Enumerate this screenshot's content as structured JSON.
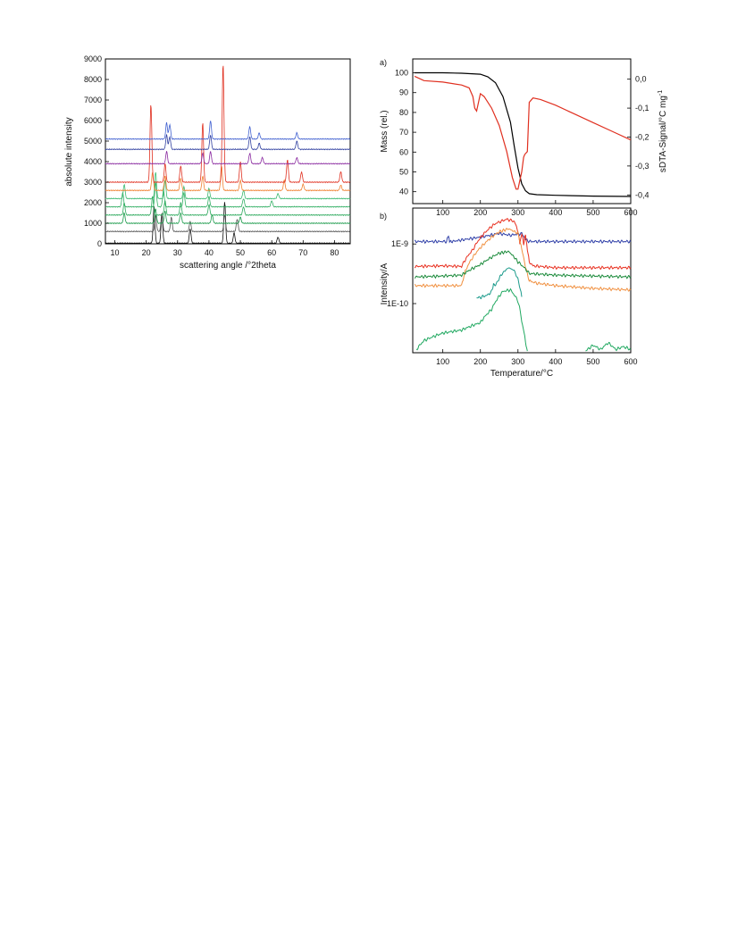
{
  "chart_data": [
    {
      "type": "line",
      "xlabel": "scattering angle /°2theta",
      "ylabel": "absolute intensity",
      "xlim": [
        7,
        85
      ],
      "ylim": [
        0,
        9000
      ],
      "x_ticks": [
        "10",
        "20",
        "30",
        "40",
        "50",
        "60",
        "70",
        "80"
      ],
      "y_ticks": [
        "0",
        "1000",
        "2000",
        "3000",
        "4000",
        "5000",
        "6000",
        "7000",
        "8000",
        "9000"
      ],
      "grid": false,
      "trace_colors": [
        "#111111",
        "#555555",
        "#1a9a4a",
        "#2aa85a",
        "#35b066",
        "#3fba72",
        "#f08030",
        "#e03020",
        "#8a2aa0",
        "#3040a0",
        "#4060d0"
      ],
      "trace_baselines": [
        30,
        600,
        1000,
        1400,
        1800,
        2200,
        2600,
        3000,
        3900,
        4600,
        5100
      ],
      "trace_peaks": [
        [
          [
            22.5,
            1800
          ],
          [
            25,
            1400
          ],
          [
            34,
            700
          ],
          [
            45,
            2000
          ],
          [
            48,
            500
          ],
          [
            62,
            300
          ]
        ],
        [
          [
            23,
            800
          ],
          [
            25,
            900
          ],
          [
            28,
            700
          ],
          [
            34,
            500
          ],
          [
            45,
            800
          ],
          [
            49,
            600
          ]
        ],
        [
          [
            13,
            500
          ],
          [
            23,
            700
          ],
          [
            26,
            600
          ],
          [
            31,
            500
          ],
          [
            41,
            400
          ],
          [
            50,
            300
          ]
        ],
        [
          [
            13,
            600
          ],
          [
            22,
            900
          ],
          [
            26,
            700
          ],
          [
            31,
            600
          ],
          [
            40,
            500
          ],
          [
            51,
            400
          ]
        ],
        [
          [
            12.5,
            700
          ],
          [
            23,
            1200
          ],
          [
            25.5,
            800
          ],
          [
            32,
            700
          ],
          [
            40,
            500
          ],
          [
            51,
            400
          ],
          [
            60,
            300
          ]
        ],
        [
          [
            13,
            700
          ],
          [
            23,
            1300
          ],
          [
            26,
            900
          ],
          [
            32,
            600
          ],
          [
            40,
            500
          ],
          [
            51,
            400
          ],
          [
            62,
            250
          ]
        ],
        [
          [
            22,
            900
          ],
          [
            26,
            700
          ],
          [
            31,
            600
          ],
          [
            38,
            700
          ],
          [
            44,
            1200
          ],
          [
            50,
            500
          ],
          [
            64,
            500
          ],
          [
            70,
            300
          ],
          [
            82,
            250
          ]
        ],
        [
          [
            21.5,
            3800
          ],
          [
            26,
            900
          ],
          [
            31,
            800
          ],
          [
            38,
            2900
          ],
          [
            44.5,
            5800
          ],
          [
            50,
            1000
          ],
          [
            65,
            1100
          ],
          [
            69.5,
            500
          ],
          [
            82,
            500
          ]
        ],
        [
          [
            26.5,
            600
          ],
          [
            38,
            500
          ],
          [
            40.5,
            600
          ],
          [
            53,
            500
          ],
          [
            57,
            300
          ],
          [
            68,
            300
          ]
        ],
        [
          [
            26.5,
            700
          ],
          [
            27.5,
            600
          ],
          [
            40.5,
            700
          ],
          [
            53,
            600
          ],
          [
            56,
            300
          ],
          [
            68,
            400
          ]
        ],
        [
          [
            26.5,
            800
          ],
          [
            27.5,
            700
          ],
          [
            40.5,
            900
          ],
          [
            53,
            600
          ],
          [
            56,
            300
          ],
          [
            68,
            300
          ]
        ]
      ]
    },
    {
      "type": "line",
      "panel_label": "a)",
      "xlabel": "",
      "ylabel": "Mass (rel.)",
      "y2label": "sDTA-Signal/°C mg",
      "y2label_sup": "-1",
      "xlim": [
        20,
        600
      ],
      "ylim": [
        34,
        107
      ],
      "y2lim": [
        -0.43,
        0.07
      ],
      "x_ticks": [
        "100",
        "200",
        "300",
        "400",
        "500",
        "600"
      ],
      "y_ticks": [
        "40",
        "50",
        "60",
        "70",
        "80",
        "90",
        "100"
      ],
      "y2_ticks": [
        "0,0",
        "-0,1",
        "-0,2",
        "-0,3",
        "-0,4"
      ],
      "series": [
        {
          "color": "#000000",
          "axis": "left",
          "x": [
            25,
            100,
            150,
            200,
            220,
            240,
            260,
            280,
            290,
            300,
            310,
            320,
            330,
            350,
            400,
            500,
            600
          ],
          "y": [
            100,
            100,
            99.8,
            99.3,
            98.0,
            95.0,
            88.0,
            75.0,
            63.0,
            52.0,
            44.0,
            40.5,
            39.0,
            38.5,
            38.2,
            37.8,
            37.6
          ]
        },
        {
          "color": "#e03020",
          "axis": "right",
          "x": [
            25,
            50,
            100,
            150,
            170,
            180,
            185,
            190,
            195,
            200,
            210,
            230,
            250,
            270,
            285,
            295,
            300,
            310,
            315,
            318,
            325,
            330,
            340,
            360,
            400,
            450,
            500,
            550,
            600
          ],
          "y": [
            0.01,
            -0.005,
            -0.01,
            -0.02,
            -0.03,
            -0.06,
            -0.1,
            -0.11,
            -0.08,
            -0.05,
            -0.06,
            -0.1,
            -0.16,
            -0.25,
            -0.34,
            -0.38,
            -0.38,
            -0.32,
            -0.27,
            -0.26,
            -0.25,
            -0.08,
            -0.065,
            -0.07,
            -0.09,
            -0.12,
            -0.15,
            -0.18,
            -0.21
          ]
        }
      ]
    },
    {
      "type": "line",
      "panel_label": "b)",
      "xlabel": "Temperature/°C",
      "ylabel": "Intensity/A",
      "xlim": [
        20,
        600
      ],
      "ylim": [
        1.5e-11,
        4e-09
      ],
      "log_y": true,
      "x_ticks": [
        "100",
        "200",
        "300",
        "400",
        "500",
        "600"
      ],
      "y_ticks": [
        "1E-9",
        "1E-10"
      ],
      "series": [
        {
          "color": "#3040a8",
          "x": [
            25,
            110,
            115,
            118,
            125,
            200,
            250,
            280,
            310,
            320,
            330,
            350,
            400,
            500,
            600
          ],
          "y": [
            1.1e-09,
            1.1e-09,
            1.4e-09,
            1.1e-09,
            1.1e-09,
            1.3e-09,
            1.5e-09,
            1.4e-09,
            1.5e-09,
            1.2e-09,
            1.1e-09,
            1.1e-09,
            1.1e-09,
            1.1e-09,
            1.1e-09
          ]
        },
        {
          "color": "#e83020",
          "x": [
            25,
            100,
            150,
            180,
            210,
            240,
            270,
            290,
            300,
            305,
            310,
            315,
            320,
            325,
            330,
            340,
            360,
            400,
            500,
            600
          ],
          "y": [
            4.2e-10,
            4.3e-10,
            4.2e-10,
            8e-10,
            1.5e-09,
            2.2e-09,
            2.6e-09,
            2.4e-09,
            1.6e-09,
            1e-09,
            1.5e-09,
            1e-09,
            1.4e-09,
            8e-10,
            5e-10,
            4.3e-10,
            4.2e-10,
            4e-10,
            4e-10,
            4e-10
          ]
        },
        {
          "color": "#f09040",
          "x": [
            25,
            100,
            150,
            160,
            180,
            210,
            250,
            275,
            300,
            310,
            320,
            330,
            350,
            400,
            500,
            600
          ],
          "y": [
            2e-10,
            2e-10,
            2e-10,
            3.5e-10,
            6e-10,
            1e-09,
            1.6e-09,
            1.8e-09,
            1.5e-09,
            8e-10,
            4e-10,
            2.4e-10,
            2.2e-10,
            2e-10,
            1.8e-10,
            1.7e-10
          ]
        },
        {
          "color": "#1a8a3a",
          "x": [
            25,
            100,
            150,
            200,
            250,
            275,
            300,
            330,
            400,
            500,
            600
          ],
          "y": [
            2.8e-10,
            2.9e-10,
            3e-10,
            4.5e-10,
            7e-10,
            7.5e-10,
            5e-10,
            3.2e-10,
            3e-10,
            2.9e-10,
            2.8e-10
          ]
        },
        {
          "color": "#1a9a8a",
          "x": [
            190,
            200,
            220,
            230,
            235,
            240,
            260,
            275,
            290,
            300,
            310
          ],
          "y": [
            1.25e-10,
            1.27e-10,
            1.4e-10,
            1.6e-10,
            2.1e-10,
            2e-10,
            3.3e-10,
            4e-10,
            3.6e-10,
            2.5e-10,
            1.3e-10
          ]
        },
        {
          "color": "#20a860",
          "x": [
            30,
            50,
            100,
            150,
            200,
            230,
            260,
            280,
            300,
            310,
            320,
            325
          ],
          "y": [
            1.7e-11,
            2.4e-11,
            3.2e-11,
            3.6e-11,
            4.8e-11,
            8e-11,
            1.6e-10,
            1.7e-10,
            1.1e-10,
            5e-11,
            2.2e-11,
            1.6e-11
          ]
        },
        {
          "color": "#20a860",
          "x": [
            480,
            500,
            520,
            540,
            560,
            580,
            600
          ],
          "y": [
            1.6e-11,
            2e-11,
            1.7e-11,
            2.2e-11,
            1.7e-11,
            1.9e-11,
            1.7e-11
          ]
        }
      ]
    }
  ]
}
